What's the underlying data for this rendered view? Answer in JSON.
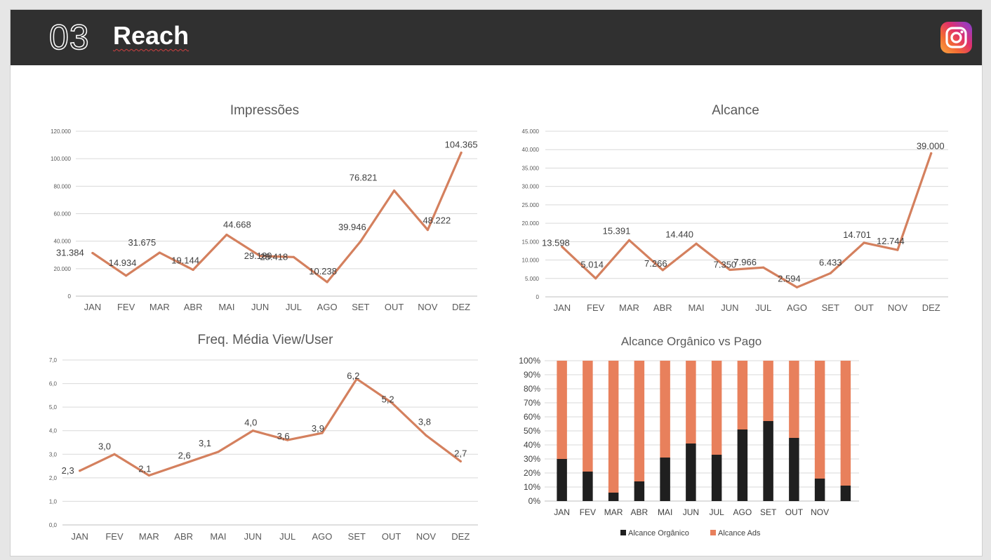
{
  "header": {
    "section_number": "03",
    "title": "Reach",
    "logo_icon": "instagram-icon",
    "bar_color": "#303030"
  },
  "colors": {
    "line": "#d4805e",
    "ads": "#e8805c",
    "organic": "#1f1f1f"
  },
  "chart_data": [
    {
      "type": "line",
      "title": "Impressões",
      "categories": [
        "JAN",
        "FEV",
        "MAR",
        "ABR",
        "MAI",
        "JUN",
        "JUL",
        "AGO",
        "SET",
        "OUT",
        "NOV",
        "DEZ"
      ],
      "values": [
        31384,
        14934,
        31675,
        19144,
        44668,
        29189,
        28418,
        10238,
        39946,
        76821,
        48222,
        104365
      ],
      "data_labels": [
        "31.384",
        "14.934",
        "31.675",
        "19.144",
        "44.668",
        "29.189",
        "28.418",
        "10.238",
        "39.946",
        "76.821",
        "48.222",
        "104.365"
      ],
      "yticks": [
        "0",
        "20.000",
        "40.000",
        "60.000",
        "80.000",
        "100.000",
        "120.000"
      ],
      "ylim": [
        0,
        120000
      ],
      "grid": true
    },
    {
      "type": "line",
      "title": "Alcance",
      "categories": [
        "JAN",
        "FEV",
        "MAR",
        "ABR",
        "MAI",
        "JUN",
        "JUL",
        "AGO",
        "SET",
        "OUT",
        "NOV",
        "DEZ"
      ],
      "values": [
        13598,
        5014,
        15391,
        7266,
        14440,
        7350,
        7966,
        2594,
        6433,
        14701,
        12744,
        39000
      ],
      "data_labels": [
        "13.598",
        "5.014",
        "15.391",
        "7.266",
        "14.440",
        "7.350",
        "7.966",
        "2.594",
        "6.433",
        "14.701",
        "12.744",
        "39.000"
      ],
      "yticks": [
        "0",
        "5.000",
        "10.000",
        "15.000",
        "20.000",
        "25.000",
        "30.000",
        "35.000",
        "40.000",
        "45.000"
      ],
      "ylim": [
        0,
        45000
      ],
      "grid": true
    },
    {
      "type": "line",
      "title": "Freq. Média View/User",
      "categories": [
        "JAN",
        "FEV",
        "MAR",
        "ABR",
        "MAI",
        "JUN",
        "JUL",
        "AGO",
        "SET",
        "OUT",
        "NOV",
        "DEZ"
      ],
      "values": [
        2.3,
        3.0,
        2.1,
        2.6,
        3.1,
        4.0,
        3.6,
        3.9,
        6.2,
        5.2,
        3.8,
        2.7
      ],
      "data_labels": [
        "2,3",
        "3,0",
        "2,1",
        "2,6",
        "3,1",
        "4,0",
        "3,6",
        "3,9",
        "6,2",
        "5,2",
        "3,8",
        "2,7"
      ],
      "yticks": [
        "0,0",
        "1,0",
        "2,0",
        "3,0",
        "4,0",
        "5,0",
        "6,0",
        "7,0"
      ],
      "ylim": [
        0,
        7
      ],
      "grid": true
    },
    {
      "type": "bar",
      "stacked": "percent",
      "title": "Alcance Orgânico vs Pago",
      "categories": [
        "JAN",
        "FEV",
        "MAR",
        "ABR",
        "MAI",
        "JUN",
        "JUL",
        "AGO",
        "SET",
        "OUT",
        "NOV",
        ""
      ],
      "series": [
        {
          "name": "Alcance Orgânico",
          "values": [
            30,
            21,
            6,
            14,
            31,
            41,
            33,
            51,
            57,
            45,
            16,
            11
          ]
        },
        {
          "name": "Alcance Ads",
          "values": [
            70,
            79,
            94,
            86,
            69,
            59,
            67,
            49,
            43,
            55,
            84,
            89
          ]
        }
      ],
      "yticks": [
        "0%",
        "10%",
        "20%",
        "30%",
        "40%",
        "50%",
        "60%",
        "70%",
        "80%",
        "90%",
        "100%"
      ],
      "ylim": [
        0,
        100
      ],
      "legend": "bottom",
      "grid": true
    }
  ]
}
